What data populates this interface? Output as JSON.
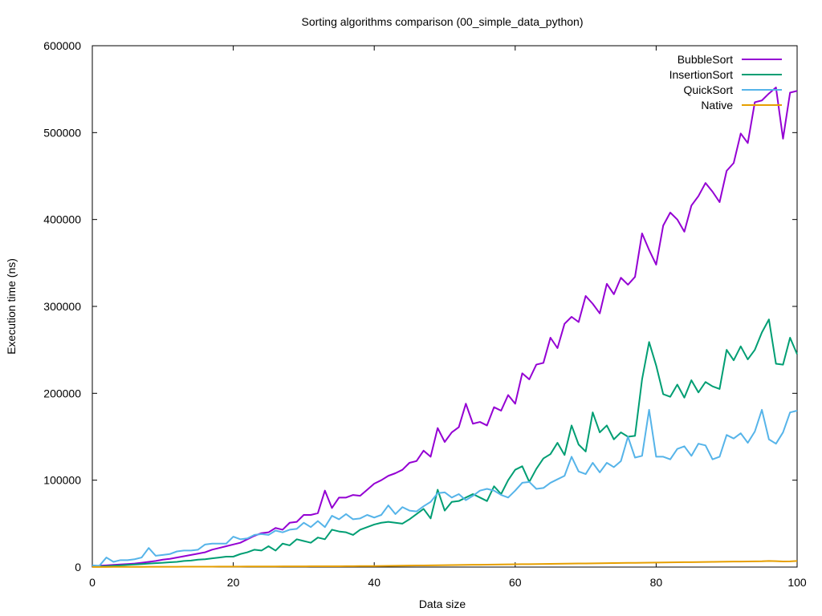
{
  "chart_data": {
    "type": "line",
    "title": "Sorting algorithms comparison (00_simple_data_python)",
    "xlabel": "Data size",
    "ylabel": "Execution time (ns)",
    "xlim": [
      0,
      100
    ],
    "ylim": [
      0,
      600000
    ],
    "xticks": [
      0,
      20,
      40,
      60,
      80,
      100
    ],
    "yticks": [
      0,
      100000,
      200000,
      300000,
      400000,
      500000,
      600000
    ],
    "xtick_labels": [
      "0",
      "20",
      "40",
      "60",
      "80",
      "100"
    ],
    "ytick_labels": [
      "0",
      "100000",
      "200000",
      "300000",
      "400000",
      "500000",
      "600000"
    ],
    "grid": false,
    "legend_position": "top-right",
    "x": [
      0,
      1,
      2,
      3,
      4,
      5,
      6,
      7,
      8,
      9,
      10,
      11,
      12,
      13,
      14,
      15,
      16,
      17,
      18,
      19,
      20,
      21,
      22,
      23,
      24,
      25,
      26,
      27,
      28,
      29,
      30,
      31,
      32,
      33,
      34,
      35,
      36,
      37,
      38,
      39,
      40,
      41,
      42,
      43,
      44,
      45,
      46,
      47,
      48,
      49,
      50,
      51,
      52,
      53,
      54,
      55,
      56,
      57,
      58,
      59,
      60,
      61,
      62,
      63,
      64,
      65,
      66,
      67,
      68,
      69,
      70,
      71,
      72,
      73,
      74,
      75,
      76,
      77,
      78,
      79,
      80,
      81,
      82,
      83,
      84,
      85,
      86,
      87,
      88,
      89,
      90,
      91,
      92,
      93,
      94,
      95,
      96,
      97,
      98,
      99,
      100
    ],
    "series": [
      {
        "name": "BubbleSort",
        "color": "#9400d3",
        "values": [
          1000,
          1500,
          2000,
          2500,
          3000,
          3500,
          4000,
          5000,
          6000,
          7000,
          8500,
          9500,
          11000,
          12500,
          14000,
          15500,
          17000,
          20000,
          22000,
          24000,
          26000,
          28000,
          32000,
          36000,
          39000,
          40000,
          45000,
          43000,
          51000,
          52000,
          60000,
          60000,
          62000,
          88000,
          68000,
          80000,
          80000,
          83000,
          82000,
          89000,
          96000,
          100000,
          105000,
          108000,
          112000,
          120000,
          122000,
          134000,
          127000,
          160000,
          144000,
          155000,
          161000,
          188000,
          165000,
          167000,
          163000,
          184000,
          180000,
          198000,
          188000,
          223000,
          216000,
          233000,
          235000,
          264000,
          252000,
          280000,
          288000,
          282000,
          312000,
          303000,
          292000,
          326000,
          314000,
          333000,
          325000,
          334000,
          384000,
          365000,
          348000,
          393000,
          408000,
          400000,
          386000,
          416000,
          427000,
          442000,
          432000,
          420000,
          456000,
          465000,
          499000,
          488000,
          535000,
          537000,
          545000,
          552000,
          493000,
          546000,
          548000
        ]
      },
      {
        "name": "InsertionSort",
        "color": "#009e73",
        "values": [
          500,
          700,
          1000,
          1500,
          2000,
          2500,
          3000,
          3500,
          4000,
          4500,
          5000,
          5500,
          6000,
          7000,
          7500,
          8500,
          9000,
          10000,
          11000,
          12000,
          12000,
          15000,
          17000,
          20000,
          19000,
          24000,
          19000,
          27000,
          25000,
          32000,
          30000,
          28000,
          34000,
          32000,
          43000,
          41000,
          40000,
          37000,
          43000,
          46000,
          49000,
          51000,
          52000,
          51000,
          50000,
          55000,
          61000,
          67000,
          56000,
          89000,
          65000,
          75000,
          76000,
          80000,
          84000,
          80000,
          76000,
          93000,
          84000,
          100000,
          112000,
          116000,
          98000,
          113000,
          125000,
          130000,
          143000,
          129000,
          163000,
          141000,
          133000,
          178000,
          155000,
          163000,
          147000,
          155000,
          150000,
          151000,
          216000,
          259000,
          232000,
          199000,
          196000,
          210000,
          195000,
          215000,
          201000,
          213000,
          208000,
          205000,
          250000,
          238000,
          254000,
          239000,
          250000,
          270000,
          285000,
          234000,
          233000,
          264000,
          245000
        ]
      },
      {
        "name": "QuickSort",
        "color": "#56b4e9",
        "values": [
          2000,
          1500,
          11000,
          6000,
          8000,
          8000,
          9000,
          11000,
          22000,
          13000,
          14000,
          15000,
          18000,
          19000,
          19000,
          20000,
          26000,
          27000,
          27000,
          27000,
          35000,
          32000,
          33000,
          37000,
          38000,
          37000,
          42000,
          40000,
          43000,
          44000,
          51000,
          46000,
          53000,
          46000,
          59000,
          55000,
          61000,
          55000,
          56000,
          60000,
          57000,
          60000,
          71000,
          61000,
          69000,
          65000,
          64000,
          70000,
          75000,
          85000,
          86000,
          80000,
          84000,
          77000,
          82000,
          88000,
          90000,
          88000,
          83000,
          80000,
          88000,
          97000,
          98000,
          90000,
          91000,
          97000,
          101000,
          105000,
          127000,
          110000,
          107000,
          120000,
          109000,
          120000,
          115000,
          122000,
          150000,
          126000,
          128000,
          181000,
          127000,
          127000,
          124000,
          136000,
          139000,
          128000,
          142000,
          140000,
          124000,
          127000,
          152000,
          148000,
          154000,
          143000,
          156000,
          181000,
          147000,
          142000,
          155000,
          178000,
          180000
        ]
      },
      {
        "name": "Native",
        "color": "#e69f00",
        "values": [
          100,
          120,
          150,
          180,
          200,
          220,
          250,
          280,
          300,
          320,
          350,
          380,
          400,
          420,
          450,
          480,
          500,
          520,
          550,
          580,
          600,
          620,
          650,
          680,
          700,
          720,
          750,
          780,
          800,
          820,
          850,
          880,
          900,
          920,
          950,
          980,
          1000,
          1050,
          1100,
          1150,
          1200,
          1300,
          1400,
          1500,
          1600,
          1700,
          1800,
          1900,
          2000,
          2100,
          2200,
          2300,
          2400,
          2500,
          2600,
          2700,
          2800,
          2900,
          3000,
          3100,
          3200,
          3300,
          3400,
          3500,
          3600,
          3700,
          3800,
          3900,
          4000,
          4100,
          4200,
          4300,
          4400,
          4500,
          4600,
          4700,
          4800,
          4900,
          5000,
          5100,
          5200,
          5300,
          5400,
          5500,
          5600,
          5700,
          5800,
          5900,
          6000,
          6100,
          6200,
          6300,
          6400,
          6500,
          6600,
          6700,
          7000,
          6800,
          6500,
          6600,
          7000
        ]
      }
    ]
  }
}
